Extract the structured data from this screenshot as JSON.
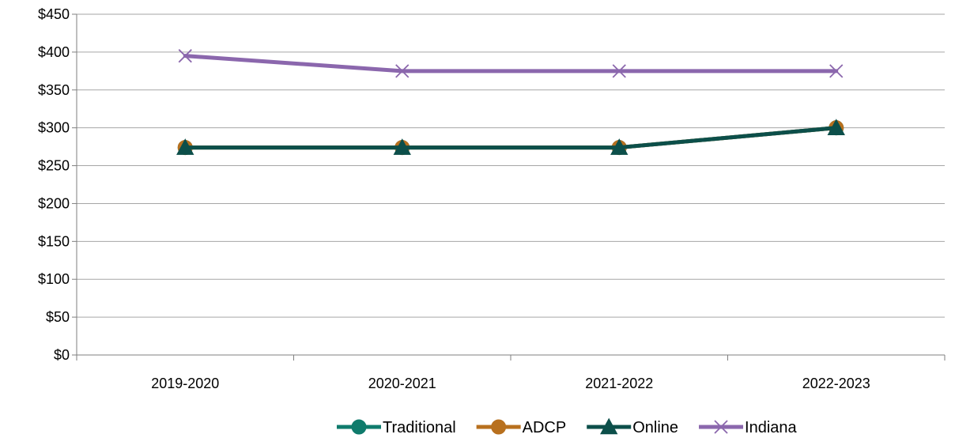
{
  "chart_data": {
    "type": "line",
    "title": "",
    "xlabel": "",
    "ylabel": "",
    "categories": [
      "2019-2020",
      "2020-2021",
      "2021-2022",
      "2022-2023"
    ],
    "y_ticks": [
      "$0",
      "$50",
      "$100",
      "$150",
      "$200",
      "$250",
      "$300",
      "$350",
      "$400",
      "$450"
    ],
    "ylim": [
      0,
      450
    ],
    "y_tick_step": 50,
    "grid": true,
    "legend_position": "bottom",
    "series": [
      {
        "name": "Traditional",
        "values": [
          274,
          274,
          274,
          300
        ],
        "color": "#0f7b6c",
        "marker": "circle"
      },
      {
        "name": "ADCP",
        "values": [
          274,
          274,
          274,
          300
        ],
        "color": "#b8701e",
        "marker": "circle"
      },
      {
        "name": "Online",
        "values": [
          274,
          274,
          274,
          300
        ],
        "color": "#0c4f4a",
        "marker": "triangle"
      },
      {
        "name": "Indiana",
        "values": [
          395,
          375,
          375,
          375
        ],
        "color": "#8b67ad",
        "marker": "x"
      }
    ]
  }
}
